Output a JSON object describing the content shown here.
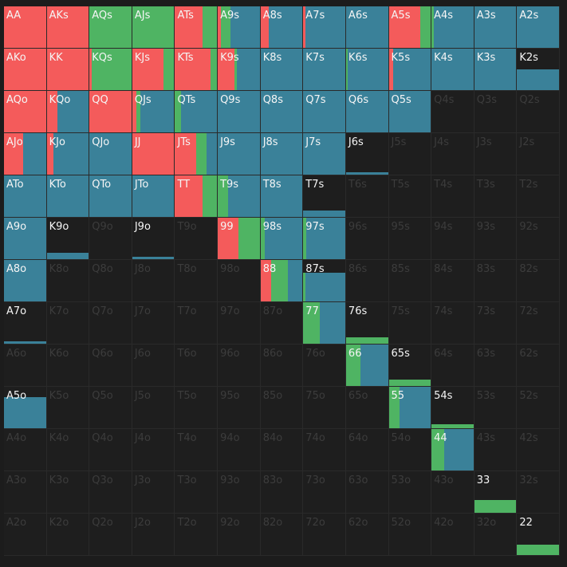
{
  "colors": {
    "raise": "#f45b5b",
    "call": "#4fb463",
    "fold": "#3a8199",
    "empty": "#1e1e1e",
    "label_on": "#f5f5f5",
    "label_off": "#3c3c3c"
  },
  "ranks": [
    "A",
    "K",
    "Q",
    "J",
    "T",
    "9",
    "8",
    "7",
    "6",
    "5",
    "4",
    "3",
    "2"
  ],
  "rows": [
    [
      {
        "h": "AA",
        "f": 1,
        "r": 1,
        "c": 0
      },
      {
        "h": "AKs",
        "f": 1,
        "r": 1,
        "c": 0
      },
      {
        "h": "AQs",
        "f": 1,
        "r": 0,
        "c": 1
      },
      {
        "h": "AJs",
        "f": 1,
        "r": 0,
        "c": 1
      },
      {
        "h": "ATs",
        "f": 1,
        "r": 0.65,
        "c": 0.35
      },
      {
        "h": "A9s",
        "f": 1,
        "r": 0.08,
        "c": 0.23
      },
      {
        "h": "A8s",
        "f": 1,
        "r": 0.2,
        "c": 0
      },
      {
        "h": "A7s",
        "f": 1,
        "r": 0.05,
        "c": 0
      },
      {
        "h": "A6s",
        "f": 1,
        "r": 0,
        "c": 0
      },
      {
        "h": "A5s",
        "f": 1,
        "r": 0.75,
        "c": 0.25
      },
      {
        "h": "A4s",
        "f": 1,
        "r": 0,
        "c": 0.05
      },
      {
        "h": "A3s",
        "f": 1,
        "r": 0,
        "c": 0
      },
      {
        "h": "A2s",
        "f": 1,
        "r": 0,
        "c": 0
      }
    ],
    [
      {
        "h": "AKo",
        "f": 1,
        "r": 1,
        "c": 0
      },
      {
        "h": "KK",
        "f": 1,
        "r": 1,
        "c": 0
      },
      {
        "h": "KQs",
        "f": 1,
        "r": 0.05,
        "c": 0.95
      },
      {
        "h": "KJs",
        "f": 1,
        "r": 0.75,
        "c": 0.25
      },
      {
        "h": "KTs",
        "f": 1,
        "r": 0.85,
        "c": 0.15
      },
      {
        "h": "K9s",
        "f": 1,
        "r": 0.4,
        "c": 0.05
      },
      {
        "h": "K8s",
        "f": 1,
        "r": 0,
        "c": 0
      },
      {
        "h": "K7s",
        "f": 1,
        "r": 0,
        "c": 0
      },
      {
        "h": "K6s",
        "f": 1,
        "r": 0,
        "c": 0.03
      },
      {
        "h": "K5s",
        "f": 1,
        "r": 0.1,
        "c": 0
      },
      {
        "h": "K4s",
        "f": 1,
        "r": 0,
        "c": 0
      },
      {
        "h": "K3s",
        "f": 1,
        "r": 0,
        "c": 0
      },
      {
        "h": "K2s",
        "f": 0.5,
        "r": 0,
        "c": 0
      }
    ],
    [
      {
        "h": "AQo",
        "f": 1,
        "r": 1,
        "c": 0
      },
      {
        "h": "KQo",
        "f": 1,
        "r": 0.25,
        "c": 0
      },
      {
        "h": "QQ",
        "f": 1,
        "r": 1,
        "c": 0
      },
      {
        "h": "QJs",
        "f": 1,
        "r": 0.1,
        "c": 0.1
      },
      {
        "h": "QTs",
        "f": 1,
        "r": 0,
        "c": 0.15
      },
      {
        "h": "Q9s",
        "f": 1,
        "r": 0,
        "c": 0
      },
      {
        "h": "Q8s",
        "f": 1,
        "r": 0,
        "c": 0
      },
      {
        "h": "Q7s",
        "f": 1,
        "r": 0,
        "c": 0
      },
      {
        "h": "Q6s",
        "f": 1,
        "r": 0,
        "c": 0
      },
      {
        "h": "Q5s",
        "f": 1,
        "r": 0,
        "c": 0
      },
      {
        "h": "Q4s",
        "f": 0,
        "r": 0,
        "c": 0
      },
      {
        "h": "Q3s",
        "f": 0,
        "r": 0,
        "c": 0
      },
      {
        "h": "Q2s",
        "f": 0,
        "r": 0,
        "c": 0
      }
    ],
    [
      {
        "h": "AJo",
        "f": 1,
        "r": 0.45,
        "c": 0
      },
      {
        "h": "KJo",
        "f": 1,
        "r": 0.15,
        "c": 0
      },
      {
        "h": "QJo",
        "f": 1,
        "r": 0,
        "c": 0
      },
      {
        "h": "JJ",
        "f": 1,
        "r": 1,
        "c": 0
      },
      {
        "h": "JTs",
        "f": 1,
        "r": 0.5,
        "c": 0.25
      },
      {
        "h": "J9s",
        "f": 1,
        "r": 0,
        "c": 0
      },
      {
        "h": "J8s",
        "f": 1,
        "r": 0,
        "c": 0
      },
      {
        "h": "J7s",
        "f": 1,
        "r": 0,
        "c": 0
      },
      {
        "h": "J6s",
        "f": 0.05,
        "r": 0,
        "c": 0
      },
      {
        "h": "J5s",
        "f": 0,
        "r": 0,
        "c": 0
      },
      {
        "h": "J4s",
        "f": 0,
        "r": 0,
        "c": 0
      },
      {
        "h": "J3s",
        "f": 0,
        "r": 0,
        "c": 0
      },
      {
        "h": "J2s",
        "f": 0,
        "r": 0,
        "c": 0
      }
    ],
    [
      {
        "h": "ATo",
        "f": 1,
        "r": 0,
        "c": 0
      },
      {
        "h": "KTo",
        "f": 1,
        "r": 0,
        "c": 0
      },
      {
        "h": "QTo",
        "f": 1,
        "r": 0,
        "c": 0
      },
      {
        "h": "JTo",
        "f": 1,
        "r": 0,
        "c": 0
      },
      {
        "h": "TT",
        "f": 1,
        "r": 0.65,
        "c": 0.35
      },
      {
        "h": "T9s",
        "f": 1,
        "r": 0,
        "c": 0.25
      },
      {
        "h": "T8s",
        "f": 1,
        "r": 0,
        "c": 0
      },
      {
        "h": "T7s",
        "f": 0.15,
        "r": 0,
        "c": 0
      },
      {
        "h": "T6s",
        "f": 0,
        "r": 0,
        "c": 0
      },
      {
        "h": "T5s",
        "f": 0,
        "r": 0,
        "c": 0
      },
      {
        "h": "T4s",
        "f": 0,
        "r": 0,
        "c": 0
      },
      {
        "h": "T3s",
        "f": 0,
        "r": 0,
        "c": 0
      },
      {
        "h": "T2s",
        "f": 0,
        "r": 0,
        "c": 0
      }
    ],
    [
      {
        "h": "A9o",
        "f": 1,
        "r": 0,
        "c": 0
      },
      {
        "h": "K9o",
        "f": 0.15,
        "r": 0,
        "c": 0
      },
      {
        "h": "Q9o",
        "f": 0,
        "r": 0,
        "c": 0
      },
      {
        "h": "J9o",
        "f": 0.05,
        "r": 0,
        "c": 0
      },
      {
        "h": "T9o",
        "f": 0,
        "r": 0,
        "c": 0
      },
      {
        "h": "99",
        "f": 1,
        "r": 0.5,
        "c": 0.5
      },
      {
        "h": "98s",
        "f": 1,
        "r": 0,
        "c": 0.1
      },
      {
        "h": "97s",
        "f": 1,
        "r": 0,
        "c": 0.07
      },
      {
        "h": "96s",
        "f": 0,
        "r": 0,
        "c": 0
      },
      {
        "h": "95s",
        "f": 0,
        "r": 0,
        "c": 0
      },
      {
        "h": "94s",
        "f": 0,
        "r": 0,
        "c": 0
      },
      {
        "h": "93s",
        "f": 0,
        "r": 0,
        "c": 0
      },
      {
        "h": "92s",
        "f": 0,
        "r": 0,
        "c": 0
      }
    ],
    [
      {
        "h": "A8o",
        "f": 1,
        "r": 0,
        "c": 0
      },
      {
        "h": "K8o",
        "f": 0,
        "r": 0,
        "c": 0
      },
      {
        "h": "Q8o",
        "f": 0,
        "r": 0,
        "c": 0
      },
      {
        "h": "J8o",
        "f": 0,
        "r": 0,
        "c": 0
      },
      {
        "h": "T8o",
        "f": 0,
        "r": 0,
        "c": 0
      },
      {
        "h": "98o",
        "f": 0,
        "r": 0,
        "c": 0
      },
      {
        "h": "88",
        "f": 1,
        "r": 0.25,
        "c": 0.4
      },
      {
        "h": "87s",
        "f": 0.7,
        "r": 0,
        "c": 0.05
      },
      {
        "h": "86s",
        "f": 0,
        "r": 0,
        "c": 0
      },
      {
        "h": "85s",
        "f": 0,
        "r": 0,
        "c": 0
      },
      {
        "h": "84s",
        "f": 0,
        "r": 0,
        "c": 0
      },
      {
        "h": "83s",
        "f": 0,
        "r": 0,
        "c": 0
      },
      {
        "h": "82s",
        "f": 0,
        "r": 0,
        "c": 0
      }
    ],
    [
      {
        "h": "A7o",
        "f": 0.05,
        "r": 0,
        "c": 0
      },
      {
        "h": "K7o",
        "f": 0,
        "r": 0,
        "c": 0
      },
      {
        "h": "Q7o",
        "f": 0,
        "r": 0,
        "c": 0
      },
      {
        "h": "J7o",
        "f": 0,
        "r": 0,
        "c": 0
      },
      {
        "h": "T7o",
        "f": 0,
        "r": 0,
        "c": 0
      },
      {
        "h": "97o",
        "f": 0,
        "r": 0,
        "c": 0
      },
      {
        "h": "87o",
        "f": 0,
        "r": 0,
        "c": 0
      },
      {
        "h": "77",
        "f": 1,
        "r": 0,
        "c": 0.4
      },
      {
        "h": "76s",
        "f": 0.15,
        "r": 0,
        "c": 1
      },
      {
        "h": "75s",
        "f": 0,
        "r": 0,
        "c": 0
      },
      {
        "h": "74s",
        "f": 0,
        "r": 0,
        "c": 0
      },
      {
        "h": "73s",
        "f": 0,
        "r": 0,
        "c": 0
      },
      {
        "h": "72s",
        "f": 0,
        "r": 0,
        "c": 0
      }
    ],
    [
      {
        "h": "A6o",
        "f": 0,
        "r": 0,
        "c": 0
      },
      {
        "h": "K6o",
        "f": 0,
        "r": 0,
        "c": 0
      },
      {
        "h": "Q6o",
        "f": 0,
        "r": 0,
        "c": 0
      },
      {
        "h": "J6o",
        "f": 0,
        "r": 0,
        "c": 0
      },
      {
        "h": "T6o",
        "f": 0,
        "r": 0,
        "c": 0
      },
      {
        "h": "96o",
        "f": 0,
        "r": 0,
        "c": 0
      },
      {
        "h": "86o",
        "f": 0,
        "r": 0,
        "c": 0
      },
      {
        "h": "76o",
        "f": 0,
        "r": 0,
        "c": 0
      },
      {
        "h": "66",
        "f": 1,
        "r": 0,
        "c": 0.35
      },
      {
        "h": "65s",
        "f": 0.15,
        "r": 0,
        "c": 1
      },
      {
        "h": "64s",
        "f": 0,
        "r": 0,
        "c": 0
      },
      {
        "h": "63s",
        "f": 0,
        "r": 0,
        "c": 0
      },
      {
        "h": "62s",
        "f": 0,
        "r": 0,
        "c": 0
      }
    ],
    [
      {
        "h": "A5o",
        "f": 0.75,
        "r": 0,
        "c": 0
      },
      {
        "h": "K5o",
        "f": 0,
        "r": 0,
        "c": 0
      },
      {
        "h": "Q5o",
        "f": 0,
        "r": 0,
        "c": 0
      },
      {
        "h": "J5o",
        "f": 0,
        "r": 0,
        "c": 0
      },
      {
        "h": "T5o",
        "f": 0,
        "r": 0,
        "c": 0
      },
      {
        "h": "95o",
        "f": 0,
        "r": 0,
        "c": 0
      },
      {
        "h": "85o",
        "f": 0,
        "r": 0,
        "c": 0
      },
      {
        "h": "75o",
        "f": 0,
        "r": 0,
        "c": 0
      },
      {
        "h": "65o",
        "f": 0,
        "r": 0,
        "c": 0
      },
      {
        "h": "55",
        "f": 1,
        "r": 0,
        "c": 0.25
      },
      {
        "h": "54s",
        "f": 0.1,
        "r": 0,
        "c": 1
      },
      {
        "h": "53s",
        "f": 0,
        "r": 0,
        "c": 0
      },
      {
        "h": "52s",
        "f": 0,
        "r": 0,
        "c": 0
      }
    ],
    [
      {
        "h": "A4o",
        "f": 0,
        "r": 0,
        "c": 0
      },
      {
        "h": "K4o",
        "f": 0,
        "r": 0,
        "c": 0
      },
      {
        "h": "Q4o",
        "f": 0,
        "r": 0,
        "c": 0
      },
      {
        "h": "J4o",
        "f": 0,
        "r": 0,
        "c": 0
      },
      {
        "h": "T4o",
        "f": 0,
        "r": 0,
        "c": 0
      },
      {
        "h": "94o",
        "f": 0,
        "r": 0,
        "c": 0
      },
      {
        "h": "84o",
        "f": 0,
        "r": 0,
        "c": 0
      },
      {
        "h": "74o",
        "f": 0,
        "r": 0,
        "c": 0
      },
      {
        "h": "64o",
        "f": 0,
        "r": 0,
        "c": 0
      },
      {
        "h": "54o",
        "f": 0,
        "r": 0,
        "c": 0
      },
      {
        "h": "44",
        "f": 1,
        "r": 0,
        "c": 0.3
      },
      {
        "h": "43s",
        "f": 0,
        "r": 0,
        "c": 0
      },
      {
        "h": "42s",
        "f": 0,
        "r": 0,
        "c": 0
      }
    ],
    [
      {
        "h": "A3o",
        "f": 0,
        "r": 0,
        "c": 0
      },
      {
        "h": "K3o",
        "f": 0,
        "r": 0,
        "c": 0
      },
      {
        "h": "Q3o",
        "f": 0,
        "r": 0,
        "c": 0
      },
      {
        "h": "J3o",
        "f": 0,
        "r": 0,
        "c": 0
      },
      {
        "h": "T3o",
        "f": 0,
        "r": 0,
        "c": 0
      },
      {
        "h": "93o",
        "f": 0,
        "r": 0,
        "c": 0
      },
      {
        "h": "83o",
        "f": 0,
        "r": 0,
        "c": 0
      },
      {
        "h": "73o",
        "f": 0,
        "r": 0,
        "c": 0
      },
      {
        "h": "63o",
        "f": 0,
        "r": 0,
        "c": 0
      },
      {
        "h": "53o",
        "f": 0,
        "r": 0,
        "c": 0
      },
      {
        "h": "43o",
        "f": 0,
        "r": 0,
        "c": 0
      },
      {
        "h": "33",
        "f": 0.3,
        "r": 0,
        "c": 1
      },
      {
        "h": "32s",
        "f": 0,
        "r": 0,
        "c": 0
      }
    ],
    [
      {
        "h": "A2o",
        "f": 0,
        "r": 0,
        "c": 0
      },
      {
        "h": "K2o",
        "f": 0,
        "r": 0,
        "c": 0
      },
      {
        "h": "Q2o",
        "f": 0,
        "r": 0,
        "c": 0
      },
      {
        "h": "J2o",
        "f": 0,
        "r": 0,
        "c": 0
      },
      {
        "h": "T2o",
        "f": 0,
        "r": 0,
        "c": 0
      },
      {
        "h": "92o",
        "f": 0,
        "r": 0,
        "c": 0
      },
      {
        "h": "82o",
        "f": 0,
        "r": 0,
        "c": 0
      },
      {
        "h": "72o",
        "f": 0,
        "r": 0,
        "c": 0
      },
      {
        "h": "62o",
        "f": 0,
        "r": 0,
        "c": 0
      },
      {
        "h": "52o",
        "f": 0,
        "r": 0,
        "c": 0
      },
      {
        "h": "42o",
        "f": 0,
        "r": 0,
        "c": 0
      },
      {
        "h": "32o",
        "f": 0,
        "r": 0,
        "c": 0
      },
      {
        "h": "22",
        "f": 0.25,
        "r": 0,
        "c": 1
      }
    ]
  ]
}
